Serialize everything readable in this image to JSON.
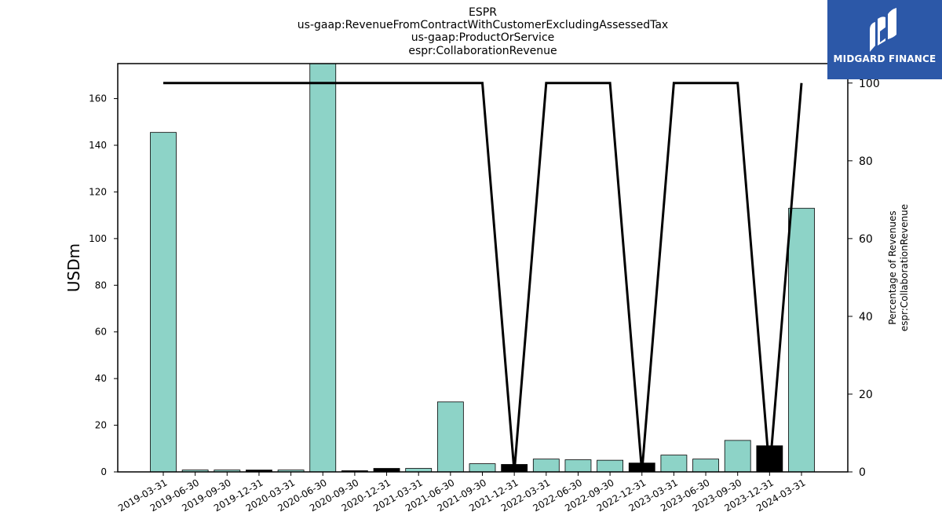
{
  "chart_data": {
    "type": "bar",
    "title_lines": [
      "ESPR",
      "us-gaap:RevenueFromContractWithCustomerExcludingAssessedTax",
      "us-gaap:ProductOrService",
      "espr:CollaborationRevenue"
    ],
    "ylabel": "USDm",
    "y2label_lines": [
      "Percentage of Revenues",
      "espr:CollaborationRevenue"
    ],
    "ylim": [
      0,
      175
    ],
    "y2lim": [
      0,
      105
    ],
    "yticks": [
      0,
      20,
      40,
      60,
      80,
      100,
      120,
      140,
      160
    ],
    "y2ticks": [
      0,
      20,
      40,
      60,
      80,
      100
    ],
    "categories": [
      "2019-03-31",
      "2019-06-30",
      "2019-09-30",
      "2019-12-31",
      "2020-03-31",
      "2020-06-30",
      "2020-09-30",
      "2020-12-31",
      "2021-03-31",
      "2021-06-30",
      "2021-09-30",
      "2021-12-31",
      "2022-03-31",
      "2022-06-30",
      "2022-09-30",
      "2022-12-31",
      "2023-03-31",
      "2023-06-30",
      "2023-09-30",
      "2023-12-31",
      "2024-03-31"
    ],
    "series": [
      {
        "type": "bar",
        "values": [
          145.5,
          0.8,
          0.8,
          0.8,
          0.8,
          175,
          0.5,
          1.5,
          1.5,
          30.0,
          3.5,
          3.2,
          5.5,
          5.2,
          5.0,
          3.8,
          7.2,
          5.5,
          13.5,
          11.2,
          113.0
        ],
        "highlight": [
          false,
          false,
          false,
          true,
          false,
          false,
          true,
          true,
          false,
          false,
          false,
          true,
          false,
          false,
          false,
          true,
          false,
          false,
          false,
          true,
          false
        ]
      },
      {
        "type": "line",
        "axis": "right",
        "values": [
          100,
          100,
          100,
          100,
          100,
          100,
          100,
          100,
          100,
          100,
          100,
          0,
          100,
          100,
          100,
          0,
          100,
          100,
          100,
          0,
          100
        ]
      }
    ],
    "colors": {
      "bar": "#8dd3c7",
      "bar_highlight": "#000000",
      "line": "#000000"
    },
    "grid": false
  },
  "logo": {
    "text": "MIDGARD FINANCE",
    "background": "#2c58a8"
  }
}
